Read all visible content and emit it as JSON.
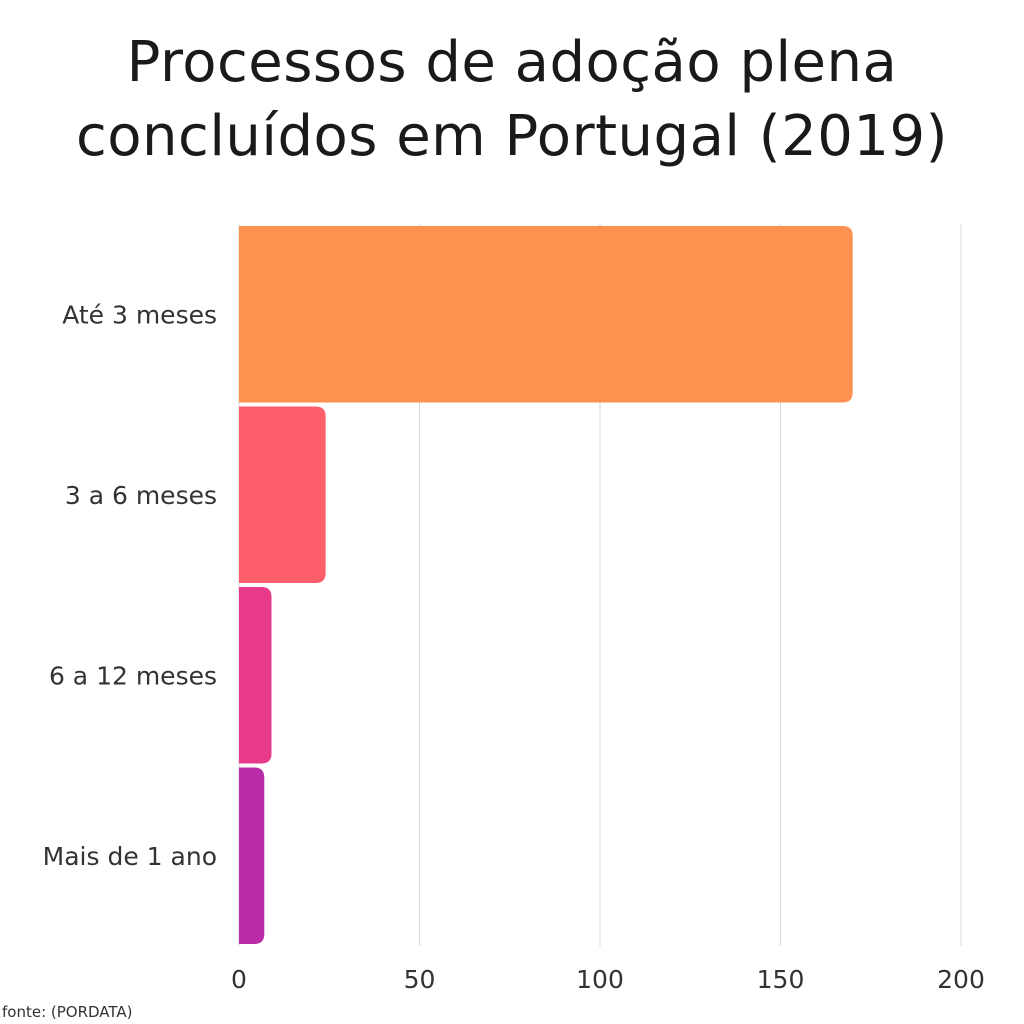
{
  "title_lines": [
    "Processos de adoção plena",
    "concluídos em Portugal (2019)"
  ],
  "source": "fonte: (PORDATA)",
  "colors": {
    "background": "#ffffff",
    "grid": "#d9d9d9",
    "text": "#333333"
  },
  "chart_data": {
    "type": "bar",
    "orientation": "horizontal",
    "title": "Processos de adoção plena concluídos em Portugal (2019)",
    "categories": [
      "Até 3 meses",
      "3 a 6 meses",
      "6 a 12 meses",
      "Mais de 1 ano"
    ],
    "values": [
      170,
      24,
      9,
      7
    ],
    "bar_colors": [
      "#fd9150",
      "#fd5f6a",
      "#e73a8a",
      "#b92ca9"
    ],
    "xlim": [
      0,
      200
    ],
    "xticks": [
      0,
      50,
      100,
      150,
      200
    ],
    "xlabel": "",
    "ylabel": "",
    "grid": true,
    "legend": "none"
  }
}
